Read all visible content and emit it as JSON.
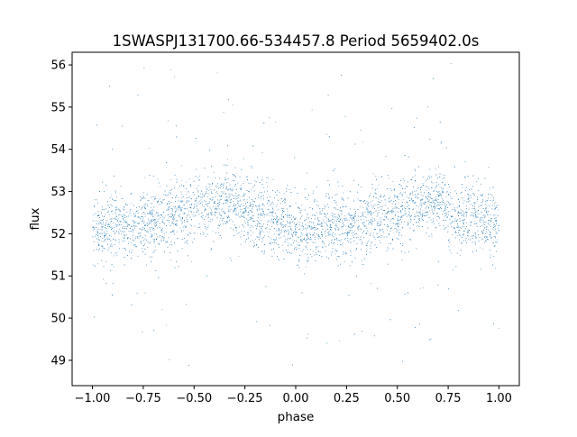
{
  "chart_data": {
    "type": "scatter",
    "title": "1SWASPJ131700.66-534457.8 Period 5659402.0s",
    "xlabel": "phase",
    "ylabel": "flux",
    "xlim": [
      -1.1,
      1.1
    ],
    "ylim": [
      48.4,
      56.3
    ],
    "x_ticks": [
      -1.0,
      -0.75,
      -0.5,
      -0.25,
      0.0,
      0.25,
      0.5,
      0.75,
      1.0
    ],
    "x_tick_labels": [
      "−1.00",
      "−0.75",
      "−0.50",
      "−0.25",
      "0.00",
      "0.25",
      "0.50",
      "0.75",
      "1.00"
    ],
    "y_ticks": [
      49,
      50,
      51,
      52,
      53,
      54,
      55,
      56
    ],
    "y_tick_labels": [
      "49",
      "50",
      "51",
      "52",
      "53",
      "54",
      "55",
      "56"
    ],
    "grid": false,
    "legend": "none",
    "series": [
      {
        "marker_color": "#1f77b4",
        "x_range": [
          -1.0,
          1.0
        ],
        "y_range": [
          48.7,
          56.05
        ],
        "phase_profile": {
          "phase": [
            -1.0,
            -0.9,
            -0.8,
            -0.7,
            -0.6,
            -0.5,
            -0.4,
            -0.33,
            -0.25,
            -0.15,
            -0.05,
            0.0,
            0.05,
            0.15,
            0.25,
            0.35,
            0.45,
            0.55,
            0.65,
            0.7,
            0.75,
            0.85,
            0.95,
            1.0
          ],
          "median_flux": [
            52.1,
            52.1,
            52.2,
            52.3,
            52.4,
            52.6,
            52.7,
            52.8,
            52.5,
            52.4,
            52.3,
            52.1,
            52.0,
            52.1,
            52.2,
            52.3,
            52.4,
            52.6,
            52.7,
            52.8,
            52.5,
            52.4,
            52.3,
            52.1
          ]
        }
      }
    ]
  }
}
